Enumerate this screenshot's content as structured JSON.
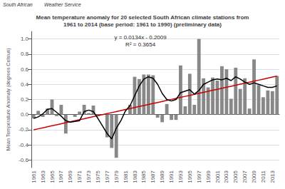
{
  "chart_data": {
    "type": "bar",
    "title": "Mean temperature anomaly for 20 selected South African climate stations from\n1961 to 2014 (base period: 1961 to 1990) (preliminary data)",
    "ylabel": "Mean Temperature Anomaly (degrees Celsius)",
    "annotations": [
      "y = 0.0134x - 0.2009\nR² = 0.3654",
      "South African",
      "Weather Service"
    ],
    "categories": [
      "1961",
      null,
      "1963",
      null,
      "1965",
      null,
      "1967",
      null,
      "1969",
      null,
      "1971",
      null,
      "1973",
      null,
      "1975",
      null,
      "1977",
      null,
      "1979",
      null,
      "1981",
      null,
      "1983",
      null,
      "1985",
      null,
      "1987",
      null,
      "1989",
      null,
      "1991",
      null,
      "1993",
      null,
      "1995",
      null,
      "1997",
      null,
      "1999",
      null,
      "2001",
      null,
      "2003",
      null,
      "2005",
      null,
      "2007",
      null,
      "2009",
      null,
      "2011",
      null,
      "2013",
      null
    ],
    "series": [
      {
        "type": "bar",
        "color": "#888888",
        "values": [
          -0.05,
          0.05,
          -0.03,
          0.08,
          0.2,
          -0.02,
          0.13,
          -0.25,
          0.0,
          -0.03,
          0.04,
          0.13,
          0.02,
          0.12,
          -0.02,
          0.0,
          -0.3,
          -0.44,
          -0.57,
          0.0,
          0.0,
          0.13,
          0.5,
          0.47,
          0.53,
          0.53,
          0.52,
          -0.04,
          -0.1,
          0.14,
          -0.07,
          -0.07,
          0.65,
          0.11,
          0.54,
          0.13,
          1.0,
          0.48,
          0.36,
          0.49,
          0.45,
          0.64,
          0.6,
          0.21,
          0.62,
          0.34,
          0.48,
          0.08,
          0.73,
          0.39,
          0.23,
          0.32,
          0.31,
          0.51
        ]
      },
      {
        "type": "line",
        "color": "#cc0000",
        "values": [
          -0.2009,
          -0.1875,
          -0.1741,
          -0.1607,
          -0.1473,
          -0.1339,
          -0.1205,
          -0.1071,
          -0.0937,
          -0.0803,
          -0.0669,
          -0.0535,
          -0.0401,
          -0.0267,
          -0.0133,
          0.0001,
          0.0135,
          0.0269,
          0.0403,
          0.0537,
          0.0671,
          0.0805,
          0.0939,
          0.1073,
          0.1207,
          0.1341,
          0.1475,
          0.1609,
          0.1743,
          0.1877,
          0.2011,
          0.2145,
          0.2279,
          0.2413,
          0.2547,
          0.2681,
          0.2815,
          0.2949,
          0.3083,
          0.3217,
          0.3351,
          0.3485,
          0.3619,
          0.3753,
          0.3887,
          0.4021,
          0.4155,
          0.4289,
          0.4423,
          0.4557,
          0.4691,
          0.4825,
          0.4959,
          0.5093
        ]
      },
      {
        "type": "line",
        "color": "#000000",
        "values": [
          -0.05,
          -0.03,
          0.01,
          0.07,
          0.08,
          0.03,
          -0.02,
          -0.08,
          -0.1,
          -0.09,
          -0.08,
          0.04,
          0.06,
          0.04,
          -0.05,
          -0.15,
          -0.25,
          -0.32,
          -0.18,
          -0.08,
          0.05,
          0.12,
          0.25,
          0.38,
          0.47,
          0.5,
          0.48,
          0.4,
          0.28,
          0.2,
          0.18,
          0.2,
          0.29,
          0.31,
          0.33,
          0.27,
          0.32,
          0.4,
          0.43,
          0.46,
          0.47,
          0.46,
          0.48,
          0.45,
          0.5,
          0.47,
          0.43,
          0.4,
          0.42,
          0.4,
          0.38,
          0.36,
          0.36,
          0.38
        ]
      }
    ],
    "ylim": [
      -0.7,
      1.1
    ],
    "yticks": [
      -0.6,
      -0.4,
      -0.2,
      {
        "value": 0.0,
        "label": "0.0"
      },
      0.2,
      0.4,
      0.6,
      0.8,
      {
        "value": 1.0,
        "label": "1.0"
      }
    ],
    "grid": true
  }
}
